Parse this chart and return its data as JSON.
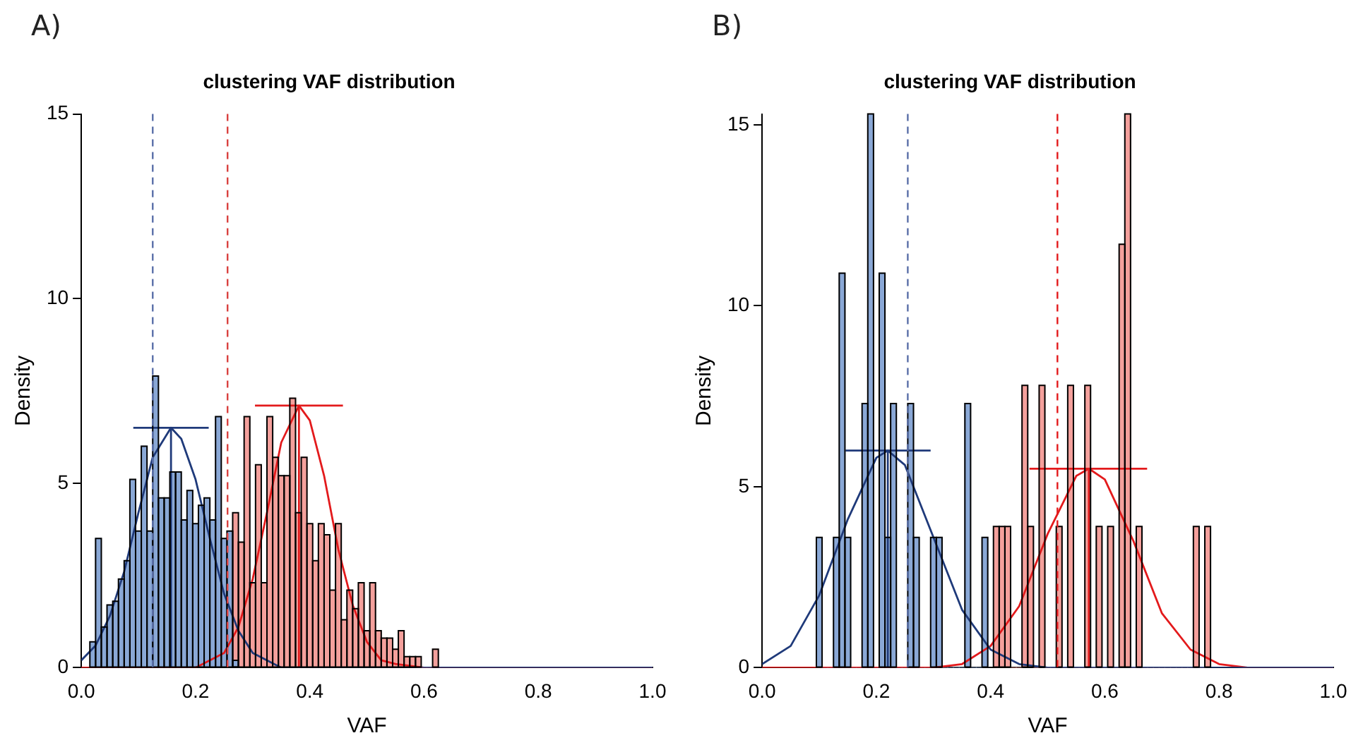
{
  "chart_data": [
    {
      "type": "histogram",
      "title": "clustering VAF distribution",
      "xlabel": "VAF",
      "ylabel": "Density",
      "annotations": [
        "A)"
      ],
      "xlim": [
        0,
        1
      ],
      "xticks": [
        {
          "value": 0,
          "label": "0.0"
        },
        {
          "value": 0.2,
          "label": "0.2"
        },
        {
          "value": 0.4,
          "label": "0.4"
        },
        {
          "value": 0.6,
          "label": "0.6"
        },
        {
          "value": 0.8,
          "label": "0.8"
        },
        {
          "value": 1,
          "label": "1.0"
        }
      ],
      "ylim": [
        0,
        15
      ],
      "yticks": [
        0,
        5,
        10,
        15
      ],
      "grid": false,
      "legend": false,
      "ref_lines": [
        {
          "axis": "x",
          "value": 0.125,
          "color": "#5a6fa8",
          "line_style": "dashed"
        },
        {
          "axis": "x",
          "value": 0.256,
          "color": "#d9413f",
          "line_style": "dashed"
        }
      ],
      "series": [
        {
          "type": "histogram",
          "color": "#8aa8d6",
          "bins": [
            0.015,
            0.025,
            0.035,
            0.045,
            0.055,
            0.065,
            0.075,
            0.085,
            0.095,
            0.105,
            0.115,
            0.125,
            0.135,
            0.145,
            0.155,
            0.165,
            0.175,
            0.185,
            0.195,
            0.205,
            0.215,
            0.225,
            0.235,
            0.245,
            0.255,
            0.265,
            0.275
          ],
          "values": [
            0.7,
            3.5,
            1.1,
            1.7,
            1.8,
            2.4,
            2.9,
            5.1,
            3.7,
            6.0,
            3.7,
            7.9,
            4.6,
            4.6,
            5.3,
            5.3,
            4.0,
            4.8,
            3.9,
            4.4,
            4.6,
            4.0,
            6.8,
            3.5,
            3.7,
            0.2
          ]
        },
        {
          "type": "histogram",
          "color": "#f4a09c",
          "bins": [
            0.265,
            0.275,
            0.285,
            0.295,
            0.305,
            0.315,
            0.325,
            0.335,
            0.345,
            0.355,
            0.365,
            0.375,
            0.385,
            0.395,
            0.405,
            0.415,
            0.425,
            0.435,
            0.445,
            0.455,
            0.465,
            0.475,
            0.485,
            0.495,
            0.505,
            0.515,
            0.525,
            0.535,
            0.545,
            0.555,
            0.565,
            0.575,
            0.585,
            0.595,
            0.605,
            0.615,
            0.625
          ],
          "values": [
            4.2,
            3.4,
            6.8,
            2.3,
            5.5,
            2.3,
            6.8,
            5.7,
            5.2,
            5.2,
            7.3,
            4.2,
            5.7,
            3.9,
            2.9,
            3.9,
            3.6,
            2.1,
            3.9,
            1.3,
            2.1,
            1.6,
            2.3,
            1.0,
            2.3,
            1.0,
            0.8,
            0.8,
            0.5,
            1.0,
            0.3,
            0.3,
            0.3,
            0,
            0,
            0.5
          ]
        },
        {
          "type": "line",
          "color": "#1f3a7a",
          "x": [
            0,
            0.025,
            0.05,
            0.075,
            0.1,
            0.125,
            0.157,
            0.175,
            0.2,
            0.225,
            0.25,
            0.275,
            0.3,
            0.325,
            0.35,
            0.4,
            1
          ],
          "values": [
            0.2,
            0.6,
            1.4,
            2.6,
            4.2,
            5.7,
            6.5,
            6.2,
            5.1,
            3.5,
            2.0,
            1.0,
            0.4,
            0.2,
            0.0,
            0,
            0
          ]
        },
        {
          "type": "line",
          "color": "#e31a1c",
          "x": [
            0,
            0.2,
            0.25,
            0.275,
            0.3,
            0.325,
            0.35,
            0.381,
            0.4,
            0.425,
            0.45,
            0.475,
            0.5,
            0.525,
            0.55,
            0.6,
            1
          ],
          "values": [
            0,
            0.0,
            0.4,
            1.1,
            2.4,
            4.2,
            6.1,
            7.1,
            6.7,
            5.2,
            3.2,
            1.7,
            0.7,
            0.2,
            0.1,
            0,
            0
          ]
        },
        {
          "type": "line",
          "color": "#1f3a7a",
          "x": [
            0.157,
            0.157
          ],
          "values": [
            0,
            6.5
          ]
        },
        {
          "type": "line",
          "color": "#1f3a7a",
          "x": [
            0.091,
            0.223
          ],
          "values": [
            6.5,
            6.5
          ]
        },
        {
          "type": "line",
          "color": "#e31a1c",
          "x": [
            0.381,
            0.381
          ],
          "values": [
            0,
            7.1
          ]
        },
        {
          "type": "line",
          "color": "#e31a1c",
          "x": [
            0.304,
            0.458
          ],
          "values": [
            7.1,
            7.1
          ]
        }
      ]
    },
    {
      "type": "histogram",
      "title": "clustering VAF distribution",
      "xlabel": "VAF",
      "ylabel": "Density",
      "annotations": [
        "B)"
      ],
      "xlim": [
        0,
        1
      ],
      "xticks": [
        {
          "value": 0,
          "label": "0.0"
        },
        {
          "value": 0.2,
          "label": "0.2"
        },
        {
          "value": 0.4,
          "label": "0.4"
        },
        {
          "value": 0.6,
          "label": "0.6"
        },
        {
          "value": 0.8,
          "label": "0.8"
        },
        {
          "value": 1,
          "label": "1.0"
        }
      ],
      "ylim": [
        0,
        15.3
      ],
      "yticks": [
        0,
        5,
        10,
        15
      ],
      "grid": false,
      "legend": false,
      "ref_lines": [
        {
          "axis": "x",
          "value": 0.255,
          "color": "#5a6fa8",
          "line_style": "dashed"
        },
        {
          "axis": "x",
          "value": 0.517,
          "color": "#e31a1c",
          "line_style": "dashed"
        }
      ],
      "series": [
        {
          "type": "histogram",
          "color": "#8aa8d6",
          "bins": [
            0.095,
            0.105,
            0.115,
            0.125,
            0.135,
            0.145,
            0.155,
            0.165,
            0.175,
            0.185,
            0.195,
            0.205,
            0.215,
            0.225,
            0.235,
            0.245,
            0.255,
            0.265,
            0.275,
            0.285,
            0.295,
            0.305,
            0.315,
            0.325,
            0.335,
            0.345,
            0.355,
            0.365,
            0.375,
            0.385,
            0.395
          ],
          "values": [
            3.6,
            0,
            0,
            3.6,
            10.9,
            3.6,
            0,
            0,
            7.3,
            15.3,
            0,
            10.9,
            3.6,
            7.3,
            0,
            0,
            7.3,
            3.6,
            0,
            0,
            3.6,
            3.6,
            0,
            0,
            0,
            0,
            7.3,
            0,
            0,
            3.6
          ]
        },
        {
          "type": "histogram",
          "color": "#f4a09c",
          "bins": [
            0.405,
            0.415,
            0.425,
            0.435,
            0.445,
            0.455,
            0.465,
            0.475,
            0.485,
            0.495,
            0.505,
            0.515,
            0.525,
            0.535,
            0.545,
            0.555,
            0.565,
            0.575,
            0.585,
            0.595,
            0.605,
            0.615,
            0.625,
            0.635,
            0.645,
            0.655,
            0.665,
            0.675,
            0.685,
            0.695,
            0.705,
            0.715,
            0.725,
            0.735,
            0.745,
            0.755,
            0.765,
            0.775,
            0.785
          ],
          "values": [
            3.9,
            3.9,
            3.9,
            0,
            0,
            7.8,
            3.9,
            0,
            7.8,
            0,
            0,
            3.9,
            0,
            7.8,
            0,
            0,
            7.8,
            0,
            3.9,
            0,
            3.9,
            0,
            11.7,
            15.3,
            0,
            3.9,
            0,
            0,
            0,
            0,
            0,
            0,
            0,
            0,
            0,
            3.9,
            0,
            3.9
          ]
        },
        {
          "type": "line",
          "color": "#1f3a7a",
          "x": [
            0,
            0.05,
            0.1,
            0.15,
            0.2,
            0.22,
            0.25,
            0.3,
            0.35,
            0.4,
            0.45,
            0.5,
            0.6,
            1
          ],
          "values": [
            0.1,
            0.6,
            2.0,
            4.1,
            5.8,
            6.0,
            5.6,
            3.6,
            1.6,
            0.5,
            0.1,
            0.0,
            0,
            0
          ]
        },
        {
          "type": "line",
          "color": "#e31a1c",
          "x": [
            0,
            0.3,
            0.35,
            0.4,
            0.45,
            0.5,
            0.55,
            0.572,
            0.6,
            0.65,
            0.7,
            0.75,
            0.8,
            0.85,
            0.9,
            1
          ],
          "values": [
            0,
            0.0,
            0.1,
            0.6,
            1.7,
            3.7,
            5.3,
            5.5,
            5.2,
            3.5,
            1.5,
            0.5,
            0.1,
            0.0,
            0,
            0
          ]
        },
        {
          "type": "line",
          "color": "#1f3a7a",
          "x": [
            0.22,
            0.22
          ],
          "values": [
            0,
            6.0
          ]
        },
        {
          "type": "line",
          "color": "#1f3a7a",
          "x": [
            0.146,
            0.295
          ],
          "values": [
            6.0,
            6.0
          ]
        },
        {
          "type": "line",
          "color": "#e31a1c",
          "x": [
            0.572,
            0.572
          ],
          "values": [
            0,
            5.5
          ]
        },
        {
          "type": "line",
          "color": "#e31a1c",
          "x": [
            0.468,
            0.674
          ],
          "values": [
            5.5,
            5.5
          ]
        }
      ]
    }
  ]
}
